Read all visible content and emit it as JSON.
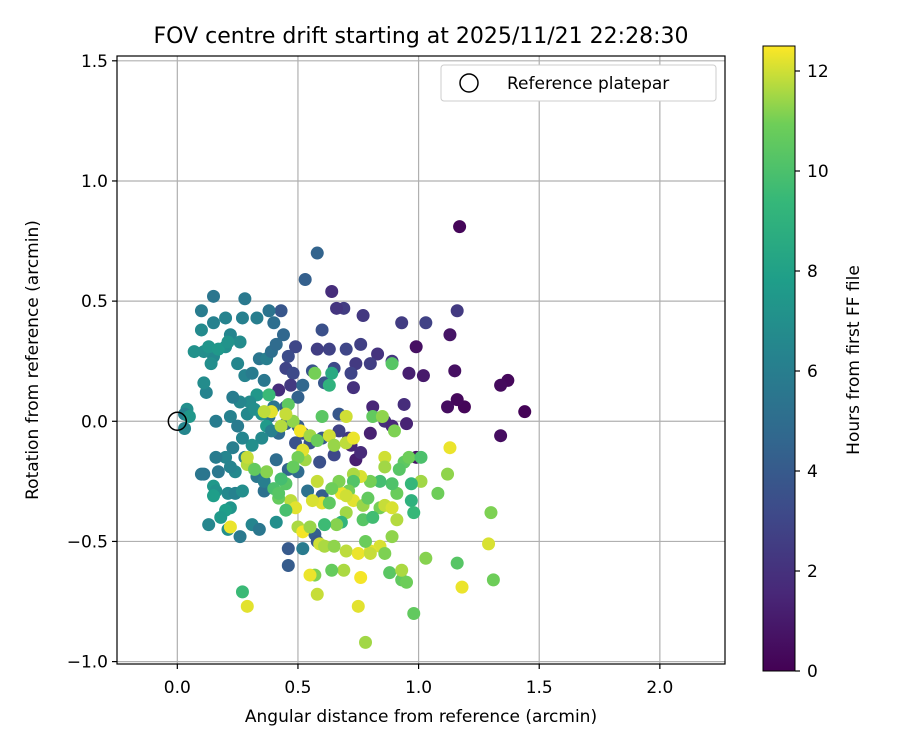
{
  "chart_data": {
    "type": "scatter",
    "title": "FOV centre drift starting at 2025/11/21 22:28:30",
    "xlabel": "Angular distance from reference (arcmin)",
    "ylabel": "Rotation from reference (arcmin)",
    "xlim": [
      -0.25,
      2.27
    ],
    "ylim": [
      -1.01,
      1.52
    ],
    "xticks": [
      0.0,
      0.5,
      1.0,
      1.5,
      2.0
    ],
    "xtick_labels": [
      "0.0",
      "0.5",
      "1.0",
      "1.5",
      "2.0"
    ],
    "yticks": [
      -1.0,
      -0.5,
      0.0,
      0.5,
      1.0,
      1.5
    ],
    "ytick_labels": [
      "−1.0",
      "−0.5",
      "0.0",
      "0.5",
      "1.0",
      "1.5"
    ],
    "grid": true,
    "legend": {
      "label": "Reference platepar",
      "position": "top-right"
    },
    "reference_point": {
      "x": 0.0,
      "y": 0.0
    },
    "colorbar": {
      "label": "Hours from first FF file",
      "colormap": "viridis",
      "range": [
        0,
        12.5
      ],
      "ticks": [
        0,
        2,
        4,
        6,
        8,
        10,
        12
      ],
      "tick_labels": [
        "0",
        "2",
        "4",
        "6",
        "8",
        "10",
        "12"
      ]
    },
    "points": [
      [
        1.17,
        0.81,
        0.2
      ],
      [
        1.44,
        0.04,
        0.1
      ],
      [
        1.37,
        0.17,
        0.3
      ],
      [
        1.34,
        0.15,
        0.4
      ],
      [
        1.34,
        -0.06,
        0.5
      ],
      [
        1.19,
        0.06,
        0.2
      ],
      [
        1.16,
        0.09,
        0.3
      ],
      [
        1.12,
        0.06,
        0.5
      ],
      [
        1.15,
        0.21,
        0.6
      ],
      [
        1.13,
        0.36,
        0.8
      ],
      [
        0.99,
        0.31,
        0.6
      ],
      [
        1.02,
        0.19,
        1.0
      ],
      [
        0.99,
        -0.15,
        0.7
      ],
      [
        0.95,
        -0.01,
        1.4
      ],
      [
        0.94,
        0.07,
        1.8
      ],
      [
        0.89,
        0.25,
        2.2
      ],
      [
        0.96,
        0.2,
        1.2
      ],
      [
        0.93,
        0.41,
        2.5
      ],
      [
        1.03,
        0.41,
        2.8
      ],
      [
        1.16,
        0.46,
        2.4
      ],
      [
        0.81,
        0.06,
        1.5
      ],
      [
        0.8,
        -0.05,
        1.3
      ],
      [
        0.86,
        0.0,
        1.9
      ],
      [
        0.89,
        -0.02,
        1.6
      ],
      [
        0.83,
        0.28,
        2.1
      ],
      [
        0.8,
        0.24,
        2.6
      ],
      [
        0.74,
        0.24,
        2.4
      ],
      [
        0.73,
        0.14,
        2.0
      ],
      [
        0.72,
        0.2,
        2.9
      ],
      [
        0.77,
        0.44,
        2.3
      ],
      [
        0.76,
        0.32,
        2.7
      ],
      [
        0.69,
        0.47,
        2.5
      ],
      [
        0.66,
        0.47,
        2.2
      ],
      [
        0.64,
        0.54,
        1.8
      ],
      [
        0.7,
        0.3,
        3.0
      ],
      [
        0.65,
        0.22,
        3.2
      ],
      [
        0.63,
        0.3,
        2.8
      ],
      [
        0.58,
        0.3,
        2.6
      ],
      [
        0.6,
        0.38,
        3.5
      ],
      [
        0.58,
        0.7,
        4.5
      ],
      [
        0.53,
        0.59,
        4.3
      ],
      [
        0.43,
        0.46,
        3.8
      ],
      [
        0.49,
        0.31,
        3.0
      ],
      [
        0.46,
        0.27,
        3.3
      ],
      [
        0.45,
        0.22,
        2.9
      ],
      [
        0.48,
        0.2,
        3.2
      ],
      [
        0.47,
        0.15,
        2.4
      ],
      [
        0.42,
        0.13,
        1.8
      ],
      [
        0.5,
        0.1,
        4.4
      ],
      [
        0.52,
        0.15,
        4.7
      ],
      [
        0.56,
        0.21,
        3.6
      ],
      [
        0.61,
        0.16,
        3.8
      ],
      [
        0.67,
        0.03,
        3.9
      ],
      [
        0.72,
        -0.1,
        1.5
      ],
      [
        0.74,
        -0.16,
        1.2
      ],
      [
        0.76,
        -0.13,
        1.7
      ],
      [
        0.71,
        -0.07,
        2.3
      ],
      [
        0.67,
        -0.04,
        2.8
      ],
      [
        0.65,
        -0.14,
        3.1
      ],
      [
        0.59,
        -0.17,
        3.5
      ],
      [
        0.6,
        -0.07,
        4.0
      ],
      [
        0.55,
        -0.09,
        3.7
      ],
      [
        0.52,
        -0.05,
        3.3
      ],
      [
        0.49,
        -0.09,
        3.6
      ],
      [
        0.5,
        -0.02,
        4.1
      ],
      [
        0.45,
        -0.01,
        4.5
      ],
      [
        0.42,
        -0.05,
        4.8
      ],
      [
        0.45,
        0.06,
        4.2
      ],
      [
        0.4,
        0.06,
        5.5
      ],
      [
        0.38,
        0.02,
        5.2
      ],
      [
        0.41,
        -0.16,
        5.0
      ],
      [
        0.46,
        -0.2,
        4.6
      ],
      [
        0.5,
        -0.21,
        4.9
      ],
      [
        0.54,
        -0.29,
        5.3
      ],
      [
        0.6,
        -0.31,
        4.2
      ],
      [
        0.57,
        -0.47,
        4.3
      ],
      [
        0.46,
        -0.53,
        4.0
      ],
      [
        0.46,
        -0.6,
        4.1
      ],
      [
        0.52,
        -0.53,
        5.8
      ],
      [
        0.58,
        -0.5,
        3.9
      ],
      [
        0.44,
        0.36,
        4.7
      ],
      [
        0.4,
        0.41,
        5.1
      ],
      [
        0.38,
        0.46,
        5.4
      ],
      [
        0.33,
        0.43,
        6.0
      ],
      [
        0.28,
        0.51,
        5.7
      ],
      [
        0.27,
        0.43,
        6.1
      ],
      [
        0.2,
        0.43,
        6.3
      ],
      [
        0.15,
        0.52,
        5.5
      ],
      [
        0.1,
        0.46,
        5.9
      ],
      [
        0.15,
        0.41,
        6.2
      ],
      [
        0.1,
        0.38,
        6.7
      ],
      [
        0.22,
        0.36,
        6.4
      ],
      [
        0.26,
        0.33,
        6.8
      ],
      [
        0.2,
        0.31,
        7.0
      ],
      [
        0.15,
        0.27,
        6.6
      ],
      [
        0.11,
        0.29,
        6.9
      ],
      [
        0.07,
        0.29,
        7.1
      ],
      [
        0.13,
        0.31,
        7.3
      ],
      [
        0.17,
        0.3,
        7.5
      ],
      [
        0.21,
        0.33,
        7.2
      ],
      [
        0.25,
        0.24,
        6.5
      ],
      [
        0.28,
        0.19,
        6.3
      ],
      [
        0.31,
        0.2,
        5.8
      ],
      [
        0.34,
        0.26,
        5.5
      ],
      [
        0.37,
        0.26,
        6.0
      ],
      [
        0.39,
        0.29,
        5.1
      ],
      [
        0.41,
        0.32,
        4.9
      ],
      [
        0.36,
        0.17,
        5.6
      ],
      [
        0.33,
        0.11,
        7.4
      ],
      [
        0.3,
        0.08,
        6.8
      ],
      [
        0.26,
        0.08,
        6.5
      ],
      [
        0.23,
        0.1,
        5.9
      ],
      [
        0.22,
        0.02,
        6.2
      ],
      [
        0.25,
        -0.02,
        5.8
      ],
      [
        0.29,
        0.03,
        6.6
      ],
      [
        0.32,
        0.05,
        6.9
      ],
      [
        0.35,
        0.03,
        7.2
      ],
      [
        0.37,
        -0.02,
        7.6
      ],
      [
        0.39,
        -0.04,
        6.1
      ],
      [
        0.35,
        -0.07,
        6.7
      ],
      [
        0.31,
        -0.1,
        7.0
      ],
      [
        0.27,
        -0.07,
        6.4
      ],
      [
        0.23,
        -0.11,
        6.0
      ],
      [
        0.2,
        -0.15,
        6.4
      ],
      [
        0.16,
        -0.15,
        5.9
      ],
      [
        0.17,
        -0.21,
        5.6
      ],
      [
        0.11,
        -0.22,
        5.4
      ],
      [
        0.15,
        -0.27,
        7.5
      ],
      [
        0.16,
        -0.29,
        7.1
      ],
      [
        0.15,
        -0.31,
        7.8
      ],
      [
        0.21,
        -0.3,
        6.6
      ],
      [
        0.24,
        -0.3,
        6.2
      ],
      [
        0.27,
        -0.29,
        6.9
      ],
      [
        0.22,
        -0.36,
        7.3
      ],
      [
        0.2,
        -0.37,
        7.8
      ],
      [
        0.18,
        -0.4,
        7.6
      ],
      [
        0.21,
        -0.45,
        7.0
      ],
      [
        0.13,
        -0.43,
        6.5
      ],
      [
        0.26,
        -0.48,
        5.7
      ],
      [
        0.31,
        -0.43,
        6.4
      ],
      [
        0.34,
        -0.45,
        5.6
      ],
      [
        0.41,
        -0.42,
        7.0
      ],
      [
        0.36,
        -0.29,
        5.2
      ],
      [
        0.33,
        -0.23,
        5.6
      ],
      [
        0.36,
        -0.25,
        6.0
      ],
      [
        0.24,
        -0.21,
        6.6
      ],
      [
        0.28,
        -0.15,
        6.0
      ],
      [
        0.22,
        -0.19,
        6.3
      ],
      [
        0.04,
        0.05,
        7.0
      ],
      [
        0.03,
        0.03,
        6.2
      ],
      [
        0.03,
        -0.03,
        6.5
      ],
      [
        0.1,
        -0.22,
        5.5
      ],
      [
        0.16,
        0.0,
        5.9
      ],
      [
        0.12,
        0.12,
        6.3
      ],
      [
        0.11,
        0.16,
        6.8
      ],
      [
        0.14,
        0.24,
        6.9
      ],
      [
        0.05,
        0.02,
        7.4
      ],
      [
        0.63,
        0.15,
        9.0
      ],
      [
        0.64,
        0.2,
        8.5
      ],
      [
        0.57,
        0.2,
        11.0
      ],
      [
        0.46,
        0.07,
        10.5
      ],
      [
        0.48,
        0.0,
        11.3
      ],
      [
        0.45,
        0.03,
        11.9
      ],
      [
        0.39,
        0.04,
        12.2
      ],
      [
        0.43,
        -0.02,
        11.7
      ],
      [
        0.51,
        -0.04,
        12.4
      ],
      [
        0.55,
        -0.06,
        11.5
      ],
      [
        0.58,
        -0.08,
        10.8
      ],
      [
        0.63,
        -0.06,
        12.0
      ],
      [
        0.65,
        -0.1,
        11.4
      ],
      [
        0.7,
        -0.09,
        11.8
      ],
      [
        0.73,
        -0.07,
        12.3
      ],
      [
        0.7,
        0.02,
        12.0
      ],
      [
        0.81,
        0.02,
        10.6
      ],
      [
        0.85,
        0.02,
        11.3
      ],
      [
        0.89,
        0.24,
        10.3
      ],
      [
        0.9,
        -0.04,
        11.1
      ],
      [
        0.94,
        -0.17,
        10.5
      ],
      [
        0.96,
        -0.15,
        10.9
      ],
      [
        0.92,
        -0.2,
        10.3
      ],
      [
        1.01,
        -0.15,
        10.0
      ],
      [
        1.01,
        -0.25,
        11.5
      ],
      [
        0.97,
        -0.26,
        9.3
      ],
      [
        0.97,
        -0.33,
        9.0
      ],
      [
        0.91,
        -0.3,
        10.8
      ],
      [
        0.89,
        -0.26,
        10.1
      ],
      [
        0.86,
        -0.15,
        12.0
      ],
      [
        0.86,
        -0.19,
        11.5
      ],
      [
        0.84,
        -0.25,
        9.8
      ],
      [
        0.8,
        -0.25,
        11.0
      ],
      [
        0.76,
        -0.23,
        12.1
      ],
      [
        0.73,
        -0.22,
        11.6
      ],
      [
        0.73,
        -0.25,
        10.2
      ],
      [
        0.71,
        -0.29,
        11.0
      ],
      [
        0.73,
        -0.33,
        12.2
      ],
      [
        0.77,
        -0.35,
        11.4
      ],
      [
        0.79,
        -0.32,
        10.6
      ],
      [
        0.84,
        -0.36,
        11.0
      ],
      [
        0.86,
        -0.35,
        11.9
      ],
      [
        0.89,
        -0.36,
        12.1
      ],
      [
        0.91,
        -0.41,
        11.7
      ],
      [
        0.89,
        -0.48,
        11.3
      ],
      [
        0.84,
        -0.52,
        12.1
      ],
      [
        0.8,
        -0.54,
        12.2
      ],
      [
        0.78,
        -0.5,
        10.8
      ],
      [
        0.77,
        -0.41,
        10.3
      ],
      [
        0.81,
        -0.4,
        9.7
      ],
      [
        0.7,
        -0.38,
        11.5
      ],
      [
        0.68,
        -0.3,
        12.3
      ],
      [
        0.7,
        -0.31,
        12.0
      ],
      [
        0.67,
        -0.25,
        11.1
      ],
      [
        0.64,
        -0.28,
        10.9
      ],
      [
        0.6,
        -0.34,
        12.2
      ],
      [
        0.63,
        -0.34,
        10.5
      ],
      [
        0.68,
        -0.42,
        9.2
      ],
      [
        0.66,
        -0.43,
        11.2
      ],
      [
        0.61,
        -0.43,
        9.6
      ],
      [
        0.59,
        -0.51,
        12.0
      ],
      [
        0.61,
        -0.52,
        11.6
      ],
      [
        0.65,
        -0.52,
        11.3
      ],
      [
        0.7,
        -0.54,
        11.8
      ],
      [
        0.75,
        -0.55,
        12.3
      ],
      [
        0.8,
        -0.55,
        11.9
      ],
      [
        0.86,
        -0.55,
        11.1
      ],
      [
        0.88,
        -0.63,
        10.4
      ],
      [
        0.93,
        -0.66,
        10.6
      ],
      [
        0.95,
        -0.67,
        10.9
      ],
      [
        0.93,
        -0.62,
        11.6
      ],
      [
        1.03,
        -0.57,
        11.2
      ],
      [
        0.76,
        -0.65,
        12.4
      ],
      [
        0.69,
        -0.62,
        11.6
      ],
      [
        0.64,
        -0.62,
        10.7
      ],
      [
        0.57,
        -0.64,
        11.1
      ],
      [
        0.55,
        -0.64,
        12.3
      ],
      [
        0.58,
        -0.72,
        11.9
      ],
      [
        0.75,
        -0.77,
        12.2
      ],
      [
        0.78,
        -0.92,
        11.5
      ],
      [
        0.98,
        -0.8,
        10.6
      ],
      [
        1.16,
        -0.59,
        10.3
      ],
      [
        1.18,
        -0.69,
        12.3
      ],
      [
        1.31,
        -0.66,
        10.9
      ],
      [
        1.29,
        -0.51,
        12.1
      ],
      [
        1.3,
        -0.38,
        11.1
      ],
      [
        1.12,
        -0.22,
        11.3
      ],
      [
        1.13,
        -0.11,
        12.3
      ],
      [
        1.08,
        -0.3,
        10.9
      ],
      [
        0.98,
        -0.38,
        9.4
      ],
      [
        0.53,
        -0.16,
        11.5
      ],
      [
        0.52,
        -0.12,
        12.2
      ],
      [
        0.5,
        -0.15,
        11.0
      ],
      [
        0.48,
        -0.19,
        10.7
      ],
      [
        0.45,
        -0.26,
        10.3
      ],
      [
        0.47,
        -0.33,
        11.8
      ],
      [
        0.49,
        -0.36,
        12.2
      ],
      [
        0.5,
        -0.44,
        11.6
      ],
      [
        0.52,
        -0.46,
        12.4
      ],
      [
        0.55,
        -0.44,
        11.4
      ],
      [
        0.43,
        -0.24,
        9.8
      ],
      [
        0.42,
        -0.32,
        10.7
      ],
      [
        0.4,
        -0.28,
        10.0
      ],
      [
        0.37,
        -0.21,
        11.2
      ],
      [
        0.29,
        -0.18,
        11.7
      ],
      [
        0.29,
        -0.15,
        11.9
      ],
      [
        0.32,
        -0.2,
        10.6
      ],
      [
        0.22,
        -0.44,
        12.3
      ],
      [
        0.27,
        -0.71,
        9.5
      ],
      [
        0.29,
        -0.77,
        12.2
      ],
      [
        0.42,
        -0.3,
        10.3
      ],
      [
        0.58,
        -0.25,
        11.9
      ],
      [
        0.56,
        -0.33,
        12.1
      ],
      [
        0.45,
        -0.37,
        9.9
      ],
      [
        0.38,
        0.11,
        9.5
      ],
      [
        0.36,
        0.04,
        11.8
      ],
      [
        0.6,
        0.02,
        10.4
      ]
    ]
  }
}
